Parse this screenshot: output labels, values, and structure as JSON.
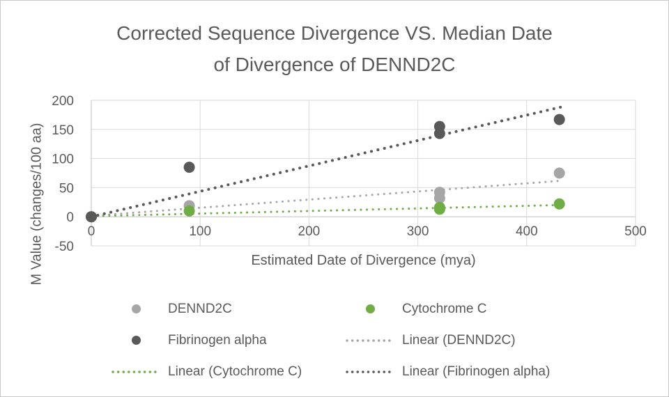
{
  "frame": {
    "background": "#ffffff",
    "border_color": "#c9c9c9"
  },
  "chart_data": {
    "type": "scatter",
    "title": "Corrected Sequence Divergence VS. Median Date of Divergence of DENND2C",
    "title_line1": "Corrected Sequence Divergence VS. Median Date",
    "title_line2": "of Divergence of DENND2C",
    "xlabel": "Estimated Date of Divergence (mya)",
    "ylabel": "M Value (changes/100 aa)",
    "xlim": [
      0,
      500
    ],
    "ylim": [
      -50,
      200
    ],
    "x_ticks": [
      0,
      100,
      200,
      300,
      400,
      500
    ],
    "y_ticks": [
      200,
      150,
      100,
      50,
      0,
      -50
    ],
    "grid": true,
    "legend_position": "bottom",
    "colors": {
      "dennd2c": "#a6a6a6",
      "cytochrome_c": "#70ad47",
      "fibrinogen_alpha": "#595959",
      "gridline": "#d9d9d9",
      "axis_line": "#bfbfbf",
      "text": "#595959"
    },
    "series": [
      {
        "name": "DENND2C",
        "color": "#a6a6a6",
        "points": [
          [
            0,
            0
          ],
          [
            90,
            19
          ],
          [
            320,
            32
          ],
          [
            320,
            42
          ],
          [
            430,
            75
          ]
        ]
      },
      {
        "name": "Cytochrome C",
        "color": "#70ad47",
        "points": [
          [
            0,
            0
          ],
          [
            90,
            10
          ],
          [
            320,
            13
          ],
          [
            320,
            16
          ],
          [
            430,
            22
          ]
        ]
      },
      {
        "name": "Fibrinogen alpha",
        "color": "#595959",
        "points": [
          [
            0,
            0
          ],
          [
            90,
            85
          ],
          [
            320,
            143
          ],
          [
            320,
            155
          ],
          [
            430,
            167
          ]
        ]
      }
    ],
    "trendlines": [
      {
        "name": "Linear (DENND2C)",
        "color": "#a6a6a6",
        "x_start": 0,
        "y_start": 1.5,
        "x_end": 433,
        "y_end": 62,
        "width": 3,
        "gap": 8.5
      },
      {
        "name": "Linear (Cytochrome C)",
        "color": "#70ad47",
        "x_start": 0,
        "y_start": 1,
        "x_end": 428,
        "y_end": 20,
        "width": 3,
        "gap": 8.5
      },
      {
        "name": "Linear (Fibrinogen alpha)",
        "color": "#595959",
        "x_start": 0,
        "y_start": 0,
        "x_end": 433,
        "y_end": 189,
        "width": 4,
        "gap": 9.5
      }
    ],
    "legend": {
      "items": [
        {
          "label": "DENND2C",
          "marker": "dot",
          "color": "#a6a6a6"
        },
        {
          "label": "Cytochrome C",
          "marker": "dot",
          "color": "#70ad47"
        },
        {
          "label": "Fibrinogen alpha",
          "marker": "dot",
          "color": "#595959"
        },
        {
          "label": "Linear (DENND2C)",
          "marker": "dotted-line",
          "color": "#a6a6a6"
        },
        {
          "label": "Linear (Cytochrome C)",
          "marker": "dotted-line",
          "color": "#70ad47"
        },
        {
          "label": "Linear (Fibrinogen alpha)",
          "marker": "dotted-line",
          "color": "#595959"
        }
      ]
    }
  }
}
